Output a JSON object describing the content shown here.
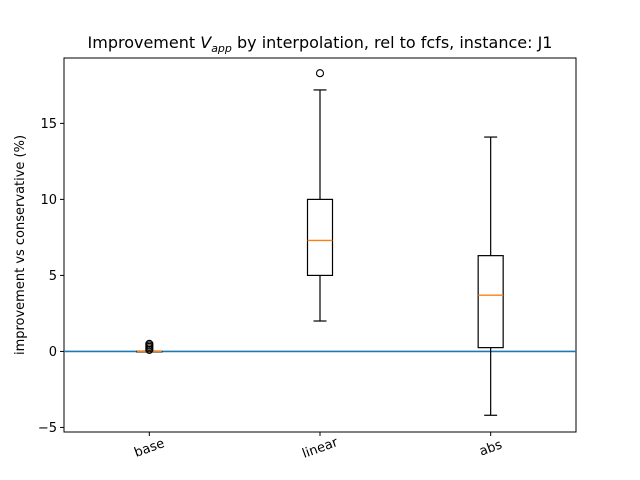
{
  "chart_data": {
    "type": "box",
    "title_prefix": "Improvement ",
    "title_var": "V",
    "title_sub": "app",
    "title_suffix": " by interpolation, rel to fcfs, instance: J1",
    "xlabel": "",
    "ylabel": "improvement vs conservative (%)",
    "ylim": [
      -5.3,
      19.3
    ],
    "yticks": [
      -5,
      0,
      5,
      10,
      15
    ],
    "ytick_labels": [
      "−5",
      "0",
      "5",
      "10",
      "15"
    ],
    "categories": [
      "base",
      "linear",
      "abs"
    ],
    "boxes": [
      {
        "category": "base",
        "whislo": 0.0,
        "q1": 0.0,
        "median": 0.0,
        "q3": 0.0,
        "whishi": 0.0,
        "fliers": [
          0.1,
          0.2,
          0.3,
          0.4,
          0.5
        ]
      },
      {
        "category": "linear",
        "whislo": 2.0,
        "q1": 5.0,
        "median": 7.3,
        "q3": 10.0,
        "whishi": 17.2,
        "fliers": [
          18.3
        ]
      },
      {
        "category": "abs",
        "whislo": -4.2,
        "q1": 0.25,
        "median": 3.7,
        "q3": 6.3,
        "whishi": 14.1,
        "fliers": []
      }
    ],
    "reference_line": {
      "y": 0,
      "color": "#1f77b4"
    },
    "box_color": "#000000",
    "median_color": "#ff7f0e",
    "grid": false,
    "xtick_rotation": -20
  }
}
